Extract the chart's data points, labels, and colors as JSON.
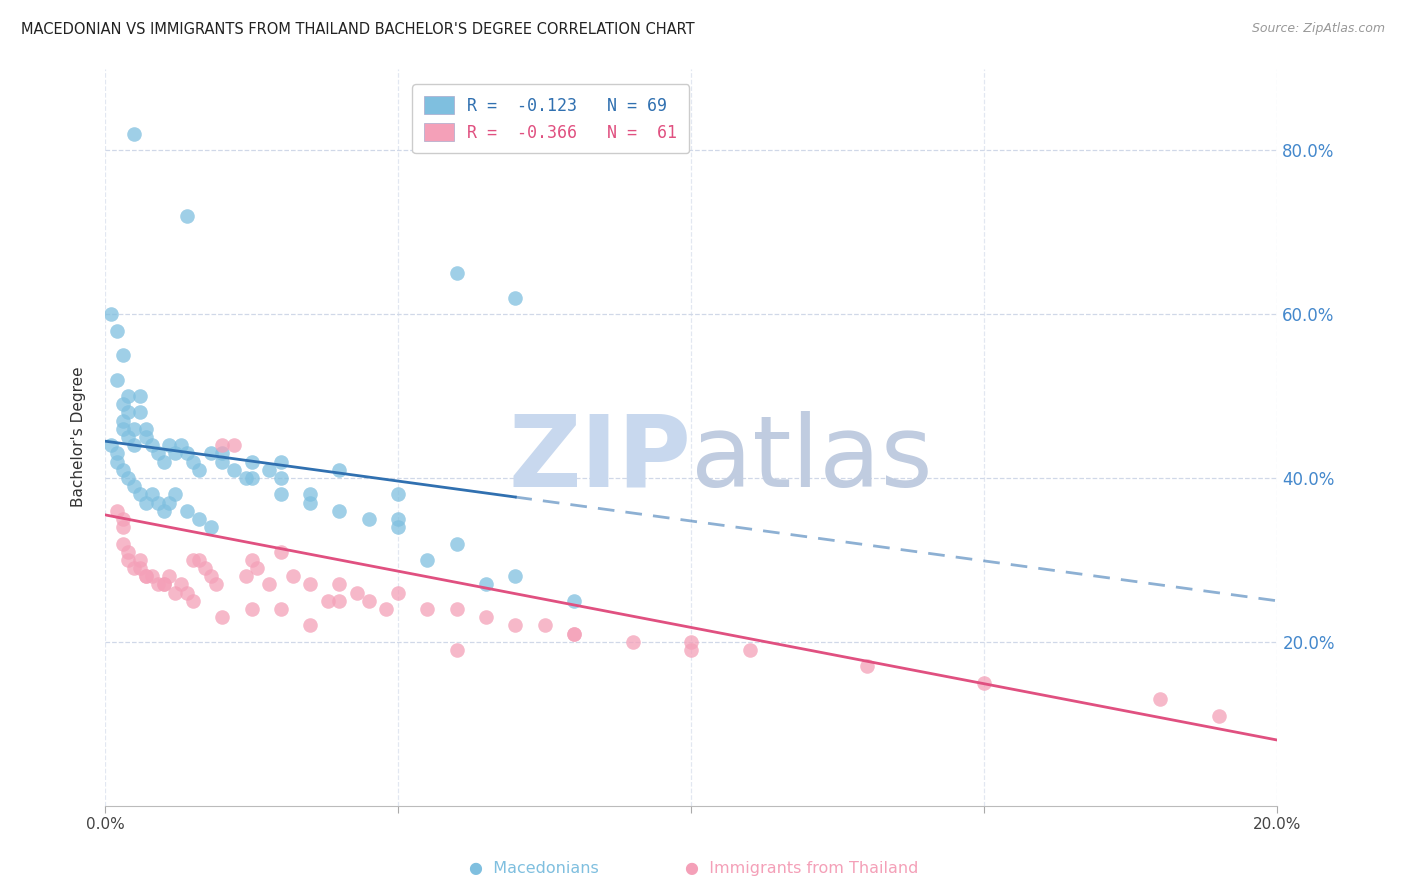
{
  "title": "MACEDONIAN VS IMMIGRANTS FROM THAILAND BACHELOR'S DEGREE CORRELATION CHART",
  "source": "Source: ZipAtlas.com",
  "ylabel": "Bachelor's Degree",
  "xlim": [
    0.0,
    0.2
  ],
  "ylim": [
    0.0,
    0.9
  ],
  "blue_color": "#7fbfdf",
  "pink_color": "#f4a0b8",
  "blue_line_color": "#3070b0",
  "pink_line_color": "#e05080",
  "blue_line_solid_end": 0.07,
  "blue_line_y0": 0.445,
  "blue_line_y1": 0.25,
  "pink_line_y0": 0.355,
  "pink_line_y1": 0.08,
  "grid_color": "#d0d8e8",
  "background_color": "#ffffff",
  "blue_scatter_x": [
    0.005,
    0.014,
    0.001,
    0.002,
    0.003,
    0.002,
    0.004,
    0.003,
    0.004,
    0.003,
    0.003,
    0.004,
    0.005,
    0.005,
    0.006,
    0.006,
    0.007,
    0.007,
    0.008,
    0.009,
    0.01,
    0.011,
    0.012,
    0.013,
    0.014,
    0.015,
    0.016,
    0.018,
    0.02,
    0.022,
    0.024,
    0.025,
    0.028,
    0.03,
    0.001,
    0.002,
    0.002,
    0.003,
    0.004,
    0.005,
    0.006,
    0.007,
    0.008,
    0.009,
    0.01,
    0.011,
    0.012,
    0.014,
    0.016,
    0.018,
    0.02,
    0.03,
    0.04,
    0.05,
    0.06,
    0.07,
    0.03,
    0.025,
    0.035,
    0.04,
    0.045,
    0.05,
    0.035,
    0.06,
    0.07,
    0.08,
    0.05,
    0.065,
    0.055
  ],
  "blue_scatter_y": [
    0.82,
    0.72,
    0.6,
    0.58,
    0.55,
    0.52,
    0.5,
    0.49,
    0.48,
    0.47,
    0.46,
    0.45,
    0.44,
    0.46,
    0.5,
    0.48,
    0.46,
    0.45,
    0.44,
    0.43,
    0.42,
    0.44,
    0.43,
    0.44,
    0.43,
    0.42,
    0.41,
    0.43,
    0.42,
    0.41,
    0.4,
    0.42,
    0.41,
    0.4,
    0.44,
    0.42,
    0.43,
    0.41,
    0.4,
    0.39,
    0.38,
    0.37,
    0.38,
    0.37,
    0.36,
    0.37,
    0.38,
    0.36,
    0.35,
    0.34,
    0.43,
    0.42,
    0.41,
    0.38,
    0.65,
    0.62,
    0.38,
    0.4,
    0.37,
    0.36,
    0.35,
    0.34,
    0.38,
    0.32,
    0.28,
    0.25,
    0.35,
    0.27,
    0.3
  ],
  "pink_scatter_x": [
    0.002,
    0.003,
    0.003,
    0.004,
    0.004,
    0.005,
    0.006,
    0.006,
    0.007,
    0.008,
    0.009,
    0.01,
    0.011,
    0.012,
    0.013,
    0.014,
    0.015,
    0.016,
    0.017,
    0.018,
    0.019,
    0.02,
    0.022,
    0.024,
    0.025,
    0.026,
    0.028,
    0.03,
    0.032,
    0.035,
    0.038,
    0.04,
    0.043,
    0.045,
    0.048,
    0.05,
    0.055,
    0.06,
    0.065,
    0.07,
    0.075,
    0.08,
    0.09,
    0.1,
    0.11,
    0.13,
    0.15,
    0.18,
    0.19,
    0.003,
    0.007,
    0.01,
    0.015,
    0.02,
    0.025,
    0.03,
    0.035,
    0.04,
    0.06,
    0.08,
    0.1
  ],
  "pink_scatter_y": [
    0.36,
    0.35,
    0.32,
    0.31,
    0.3,
    0.29,
    0.29,
    0.3,
    0.28,
    0.28,
    0.27,
    0.27,
    0.28,
    0.26,
    0.27,
    0.26,
    0.3,
    0.3,
    0.29,
    0.28,
    0.27,
    0.44,
    0.44,
    0.28,
    0.3,
    0.29,
    0.27,
    0.31,
    0.28,
    0.27,
    0.25,
    0.27,
    0.26,
    0.25,
    0.24,
    0.26,
    0.24,
    0.24,
    0.23,
    0.22,
    0.22,
    0.21,
    0.2,
    0.2,
    0.19,
    0.17,
    0.15,
    0.13,
    0.11,
    0.34,
    0.28,
    0.27,
    0.25,
    0.23,
    0.24,
    0.24,
    0.22,
    0.25,
    0.19,
    0.21,
    0.19
  ],
  "watermark_zip_color": "#c8d8ee",
  "watermark_atlas_color": "#c0cce0"
}
